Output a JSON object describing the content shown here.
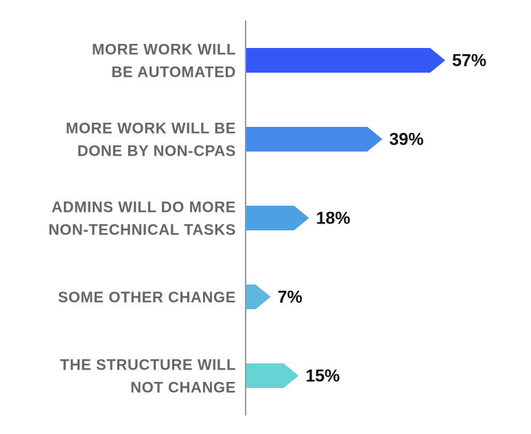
{
  "chart_data": {
    "type": "arrow-bar",
    "categories": [
      [
        "MORE WORK WILL",
        "BE AUTOMATED"
      ],
      [
        "MORE WORK WILL BE",
        "DONE BY NON-CPAS"
      ],
      [
        "ADMINS WILL DO MORE",
        "NON-TECHNICAL TASKS"
      ],
      [
        "SOME OTHER CHANGE"
      ],
      [
        "THE STRUCTURE WILL",
        "NOT CHANGE"
      ]
    ],
    "values": [
      57,
      39,
      18,
      7,
      15
    ],
    "value_labels": [
      "57%",
      "39%",
      "18%",
      "7%",
      "15%"
    ],
    "colors": [
      "#3457f7",
      "#4589ea",
      "#4da1e3",
      "#5db7dc",
      "#67d3d5"
    ]
  }
}
